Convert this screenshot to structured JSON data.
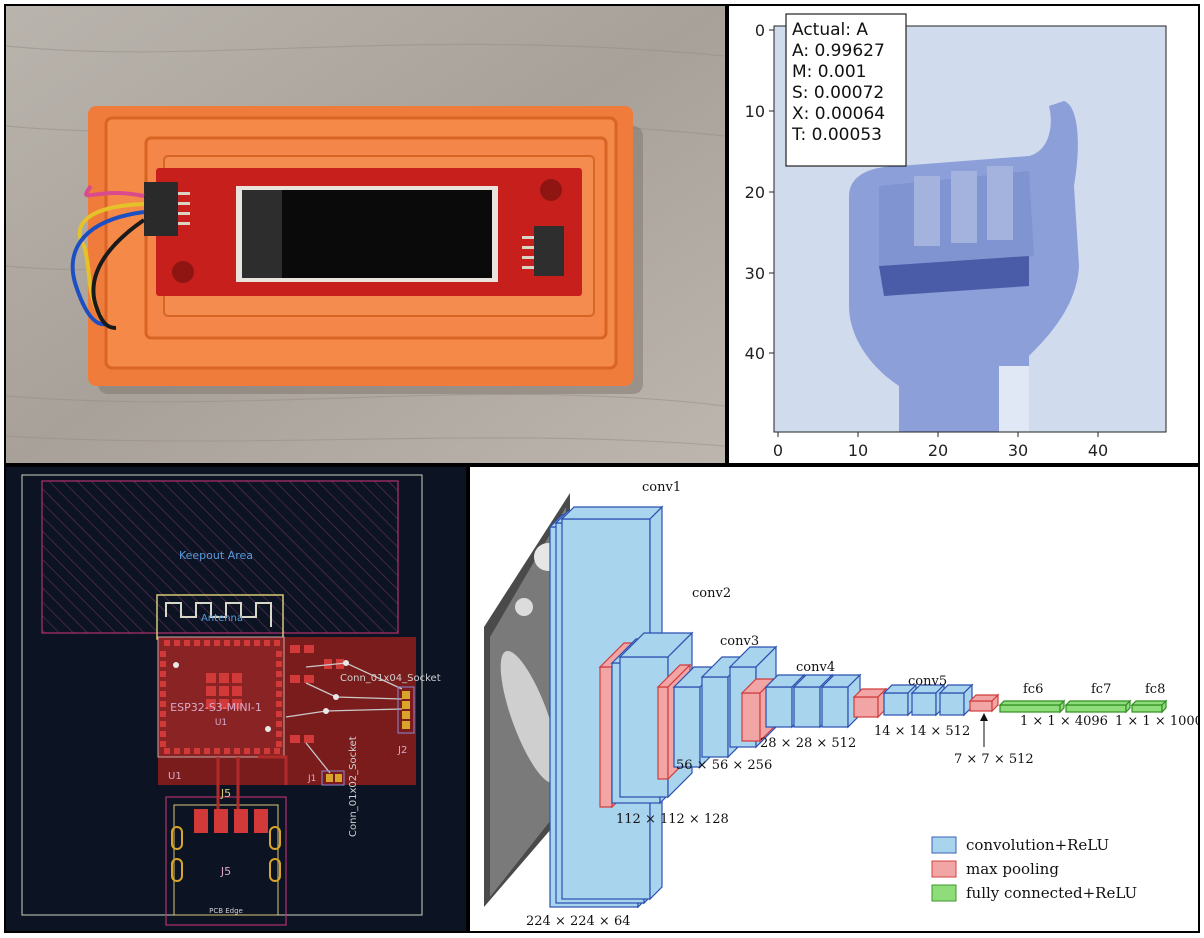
{
  "plot": {
    "legend_lines": [
      "Actual: A",
      "A: 0.99627",
      "M: 0.001",
      "S: 0.00072",
      "X: 0.00064",
      "T: 0.00053"
    ],
    "x_ticks": [
      "0",
      "10",
      "20",
      "30",
      "40"
    ],
    "y_ticks": [
      "0",
      "10",
      "20",
      "30",
      "40"
    ]
  },
  "pcb": {
    "keepout": "Keepout Area",
    "antenna": "Antenna",
    "module": "ESP32-S3-MINI-1",
    "u1": "U1",
    "u1b": "U1",
    "conn4": "Conn_01x04_Socket",
    "j2": "J2",
    "conn2": "Conn_01x02_Socket",
    "j1": "J1",
    "j5a": "J5",
    "j5b": "J5",
    "edge": "PCB Edge"
  },
  "vgg": {
    "conv1": "conv1",
    "conv2": "conv2",
    "conv3": "conv3",
    "conv4": "conv4",
    "conv5": "conv5",
    "fc6": "fc6",
    "fc7": "fc7",
    "fc8": "fc8",
    "d1": "224 × 224 × 64",
    "d2": "112 × 112 × 128",
    "d3": "56 × 56 × 256",
    "d4": "28 × 28 × 512",
    "d5": "14 × 14 × 512",
    "d6": "7 × 7 × 512",
    "d7": "1 × 1 × 4096",
    "d8": "1 × 1 × 1000",
    "legend": [
      "convolution+ReLU",
      "max pooling",
      "fully connected+ReLU"
    ],
    "colors": {
      "conv": "#a9d4ee",
      "pool": "#f2a5a5",
      "fc": "#8fdc7a"
    }
  }
}
